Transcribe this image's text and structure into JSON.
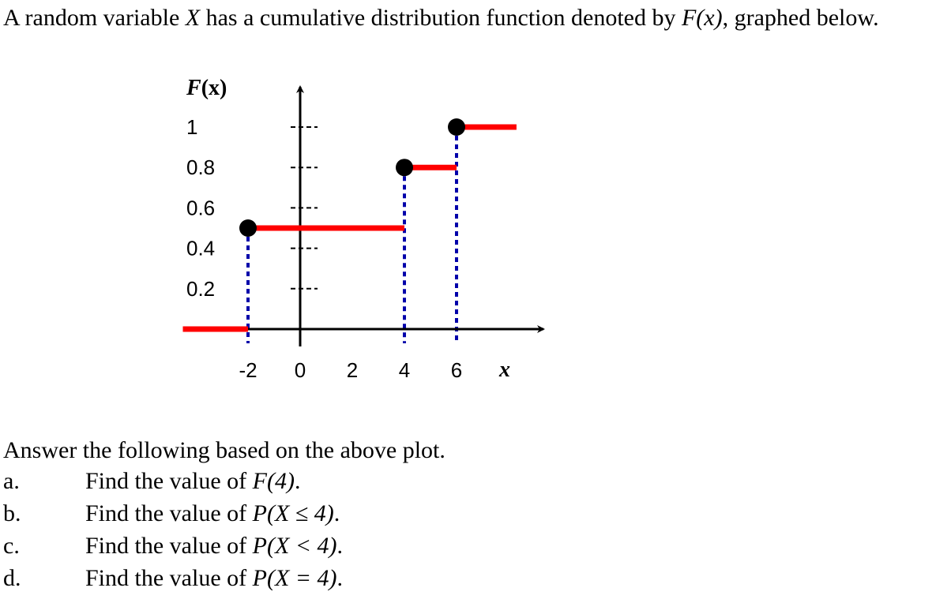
{
  "intro": {
    "text_before": "A random variable ",
    "var": "X",
    "text_middle": " has a cumulative distribution function denoted by ",
    "func": "F(x)",
    "text_after": ", graphed below."
  },
  "chart_data": {
    "type": "step",
    "ylabel_func": "F",
    "ylabel_arg": "(x)",
    "xlabel": "x",
    "x_ticks": [
      "-2",
      "0",
      "2",
      "4",
      "6"
    ],
    "y_ticks": [
      "1",
      "0.8",
      "0.6",
      "0.4",
      "0.2"
    ],
    "xlim": [
      -4.5,
      8.3
    ],
    "ylim": [
      0,
      1.18
    ],
    "segments": [
      {
        "x_start": -4.5,
        "x_end": -2,
        "y": 0
      },
      {
        "x_start": -2,
        "x_end": 4,
        "y": 0.5
      },
      {
        "x_start": 4,
        "x_end": 6,
        "y": 0.8
      },
      {
        "x_start": 6,
        "x_end": 8.3,
        "y": 1
      }
    ],
    "jump_points": [
      {
        "x": -2,
        "y": 0.5
      },
      {
        "x": 4,
        "y": 0.8
      },
      {
        "x": 6,
        "y": 1
      }
    ],
    "colors": {
      "step": "#ff0000",
      "point": "#000000",
      "dashed": "#0000aa",
      "axis": "#000000"
    }
  },
  "answer_intro": "Answer the following based on the above plot.",
  "questions": [
    {
      "letter": "a.",
      "prefix": "Find the value of ",
      "expr": "F(4)",
      "suffix": "."
    },
    {
      "letter": "b.",
      "prefix": "Find the value of ",
      "expr": "P(X ≤ 4)",
      "suffix": "."
    },
    {
      "letter": "c.",
      "prefix": "Find the value of ",
      "expr": "P(X < 4)",
      "suffix": "."
    },
    {
      "letter": "d.",
      "prefix": "Find the value of ",
      "expr": "P(X = 4)",
      "suffix": "."
    }
  ]
}
